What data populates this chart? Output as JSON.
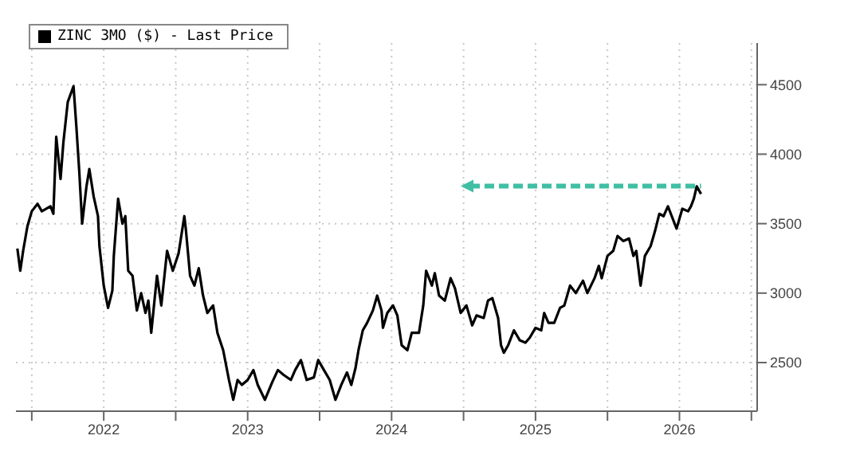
{
  "chart_data": {
    "type": "line",
    "legend": "top left",
    "grid": true,
    "marker": "none",
    "line_style": "solid",
    "xlim": [
      2021.89,
      2027.04
    ],
    "ylim": [
      2150,
      4800
    ],
    "xticks": [
      {
        "value": 2022,
        "label": null
      },
      {
        "value": 2022.5,
        "label": "2022"
      },
      {
        "value": 2023,
        "label": null
      },
      {
        "value": 2023.5,
        "label": "2023"
      },
      {
        "value": 2024,
        "label": null
      },
      {
        "value": 2024.5,
        "label": "2024"
      },
      {
        "value": 2025,
        "label": null
      },
      {
        "value": 2025.5,
        "label": "2025"
      },
      {
        "value": 2026,
        "label": null
      },
      {
        "value": 2026.5,
        "label": "2026"
      },
      {
        "value": 2027,
        "label": null
      }
    ],
    "yticks": [
      2500,
      3000,
      3500,
      4000,
      4500
    ],
    "ref_lines": [
      {
        "axis": "y",
        "value": 3770,
        "color": "#3fbfa3",
        "line_style": "dashed"
      }
    ],
    "series": [
      {
        "name": "ZINC 3MO ($) - Last Price",
        "color": "#000000",
        "x": [
          2021.9,
          2021.92,
          2021.94,
          2021.97,
          2022.0,
          2022.04,
          2022.07,
          2022.13,
          2022.15,
          2022.17,
          2022.2,
          2022.22,
          2022.25,
          2022.29,
          2022.31,
          2022.33,
          2022.35,
          2022.38,
          2022.4,
          2022.43,
          2022.46,
          2022.47,
          2022.5,
          2022.53,
          2022.56,
          2022.57,
          2022.6,
          2022.63,
          2022.65,
          2022.67,
          2022.7,
          2022.73,
          2022.76,
          2022.79,
          2022.81,
          2022.83,
          2022.87,
          2022.9,
          2022.94,
          2022.98,
          2023.02,
          2023.06,
          2023.07,
          2023.1,
          2023.13,
          2023.16,
          2023.19,
          2023.22,
          2023.26,
          2023.29,
          2023.33,
          2023.37,
          2023.4,
          2023.43,
          2023.46,
          2023.5,
          2023.54,
          2023.57,
          2023.62,
          2023.67,
          2023.71,
          2023.75,
          2023.8,
          2023.83,
          2023.87,
          2023.91,
          2023.96,
          2023.99,
          2024.03,
          2024.07,
          2024.11,
          2024.15,
          2024.19,
          2024.22,
          2024.25,
          2024.27,
          2024.3,
          2024.33,
          2024.37,
          2024.4,
          2024.43,
          2024.44,
          2024.47,
          2024.51,
          2024.54,
          2024.57,
          2024.61,
          2024.64,
          2024.69,
          2024.72,
          2024.74,
          2024.78,
          2024.8,
          2024.83,
          2024.87,
          2024.91,
          2024.94,
          2024.98,
          2025.02,
          2025.06,
          2025.09,
          2025.14,
          2025.17,
          2025.2,
          2025.24,
          2025.26,
          2025.28,
          2025.31,
          2025.35,
          2025.39,
          2025.43,
          2025.46,
          2025.5,
          2025.54,
          2025.56,
          2025.59,
          2025.63,
          2025.67,
          2025.7,
          2025.74,
          2025.78,
          2025.83,
          2025.86,
          2025.91,
          2025.94,
          2025.96,
          2026.0,
          2026.04,
          2026.07,
          2026.11,
          2026.15,
          2026.18,
          2026.2,
          2026.23,
          2026.26,
          2026.3,
          2026.33,
          2026.36,
          2026.39,
          2026.42,
          2026.44,
          2026.48,
          2026.52,
          2026.56,
          2026.58,
          2026.6,
          2026.62,
          2026.64,
          2026.65
        ],
        "values": [
          3321,
          3161,
          3304,
          3482,
          3589,
          3643,
          3589,
          3625,
          3571,
          4125,
          3821,
          4089,
          4375,
          4489,
          4196,
          3875,
          3500,
          3768,
          3893,
          3696,
          3554,
          3339,
          3054,
          2893,
          3018,
          3268,
          3679,
          3500,
          3554,
          3161,
          3125,
          2875,
          3000,
          2857,
          2946,
          2714,
          3125,
          2911,
          3304,
          3161,
          3286,
          3554,
          3464,
          3125,
          3054,
          3179,
          2982,
          2857,
          2911,
          2714,
          2589,
          2375,
          2232,
          2375,
          2339,
          2375,
          2446,
          2339,
          2232,
          2357,
          2446,
          2411,
          2375,
          2446,
          2518,
          2375,
          2393,
          2518,
          2446,
          2375,
          2232,
          2339,
          2429,
          2339,
          2464,
          2589,
          2732,
          2786,
          2875,
          2982,
          2875,
          2750,
          2857,
          2911,
          2839,
          2625,
          2589,
          2714,
          2714,
          2911,
          3161,
          3054,
          3143,
          2982,
          2946,
          3107,
          3036,
          2857,
          2911,
          2768,
          2839,
          2821,
          2946,
          2964,
          2821,
          2625,
          2571,
          2625,
          2732,
          2661,
          2643,
          2679,
          2750,
          2732,
          2857,
          2786,
          2786,
          2893,
          2911,
          3054,
          3000,
          3089,
          3000,
          3107,
          3196,
          3107,
          3268,
          3304,
          3411,
          3375,
          3393,
          3268,
          3304,
          3054,
          3268,
          3339,
          3446,
          3571,
          3554,
          3625,
          3571,
          3464,
          3607,
          3589,
          3625,
          3679,
          3768,
          3732,
          3714
        ]
      }
    ]
  }
}
